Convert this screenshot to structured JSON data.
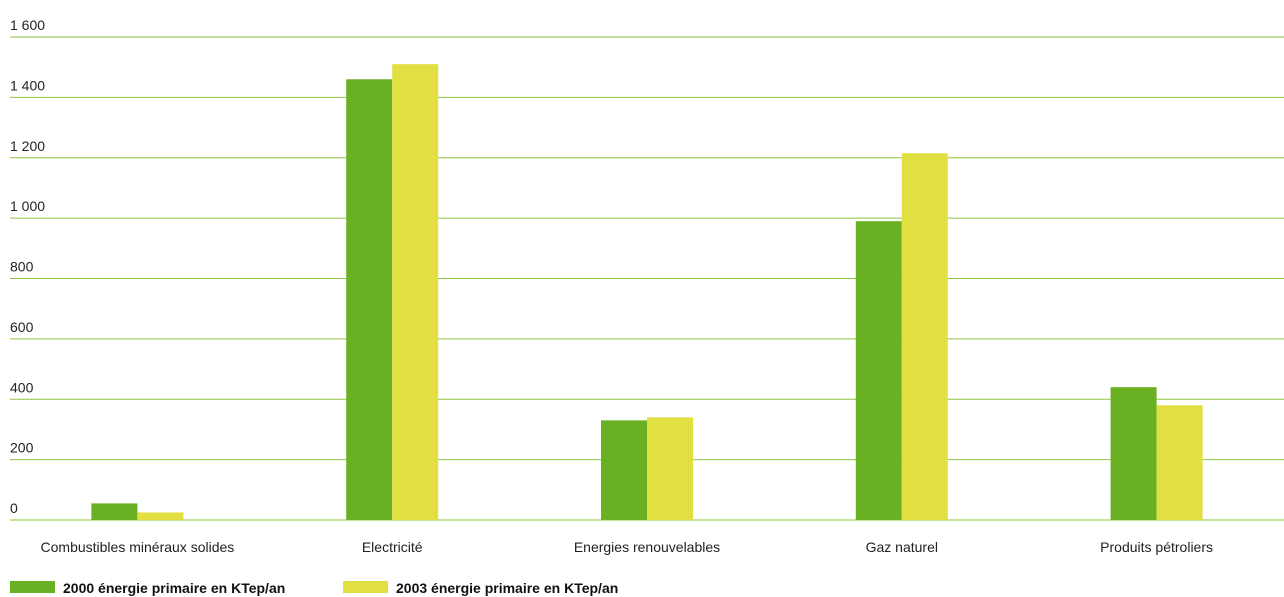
{
  "chart_data": {
    "type": "bar",
    "categories": [
      "Combustibles minéraux solides",
      "Electricité",
      "Energies renouvelables",
      "Gaz naturel",
      "Produits pétroliers"
    ],
    "series": [
      {
        "name": "2000 énergie primaire en KTep/an",
        "values": [
          55,
          1460,
          330,
          990,
          440
        ],
        "color": "#6ab023"
      },
      {
        "name": "2003 énergie primaire en KTep/an",
        "values": [
          25,
          1510,
          340,
          1215,
          380
        ],
        "color": "#e1df41"
      }
    ],
    "y_ticks": [
      0,
      200,
      400,
      600,
      800,
      1000,
      1200,
      1400,
      1600
    ],
    "y_tick_labels": [
      "0",
      "200",
      "400",
      "600",
      "800",
      "1 000",
      "1 200",
      "1 400",
      "1 600"
    ],
    "ylim": [
      0,
      1600
    ],
    "grid": true,
    "grid_color": "#8dc63f",
    "legend_position": "bottom-left",
    "title": "",
    "xlabel": "",
    "ylabel": ""
  }
}
